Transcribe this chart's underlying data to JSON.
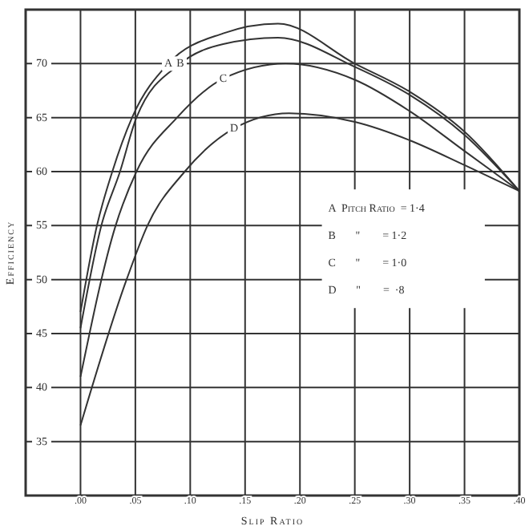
{
  "chart_data": {
    "type": "line",
    "xlabel": "Slip Ratio",
    "ylabel": "Efficiency",
    "xlim": [
      -0.05,
      0.4
    ],
    "xticks": [
      {
        "value": 0,
        "label": ".00"
      },
      {
        "value": 0.05,
        "label": ".05"
      },
      {
        "value": 0.1,
        "label": ".10"
      },
      {
        "value": 0.15,
        "label": ".15"
      },
      {
        "value": 0.2,
        "label": ".20"
      },
      {
        "value": 0.25,
        "label": ".25"
      },
      {
        "value": 0.3,
        "label": ".30"
      },
      {
        "value": 0.35,
        "label": ".35"
      },
      {
        "value": 0.4,
        "label": ".40"
      }
    ],
    "ylim": [
      30,
      75
    ],
    "yticks": [
      35,
      40,
      45,
      50,
      55,
      60,
      65,
      70
    ],
    "grid": true,
    "marker": "none",
    "line_style": "solid",
    "series": [
      {
        "name": "A",
        "color": "#333333",
        "x": [
          0,
          0.015,
          0.029,
          0.047,
          0.08,
          0.13,
          0.18,
          0.25,
          0.3,
          0.35,
          0.4
        ],
        "values": [
          47,
          55,
          60,
          65,
          70,
          72.8,
          73.7,
          70,
          67.4,
          63.7,
          58.2
        ]
      },
      {
        "name": "B",
        "color": "#333333",
        "x": [
          0,
          0.019,
          0.036,
          0.051,
          0.091,
          0.13,
          0.18,
          0.25,
          0.3,
          0.35,
          0.4
        ],
        "values": [
          45.5,
          55,
          60,
          65,
          70,
          71.8,
          72.4,
          69.7,
          67.1,
          63.4,
          58.2
        ]
      },
      {
        "name": "C",
        "color": "#333333",
        "x": [
          0,
          0.032,
          0.051,
          0.088,
          0.13,
          0.187,
          0.25,
          0.3,
          0.35,
          0.4
        ],
        "values": [
          41,
          55,
          60,
          65,
          68.6,
          70,
          68.5,
          65.6,
          61.9,
          58.2
        ]
      },
      {
        "name": "D",
        "color": "#333333",
        "x": [
          0,
          0.042,
          0.061,
          0.095,
          0.14,
          0.19,
          0.25,
          0.3,
          0.35,
          0.4
        ],
        "values": [
          36.5,
          50,
          55,
          60,
          64,
          65.4,
          64.6,
          62.9,
          60.6,
          58.2
        ]
      }
    ],
    "annotations": [
      "A  Pitch Ratio  = 1·4",
      "B       \"        = 1·2",
      "C       \"        = 1·0",
      "D       \"        =  ·8"
    ]
  }
}
